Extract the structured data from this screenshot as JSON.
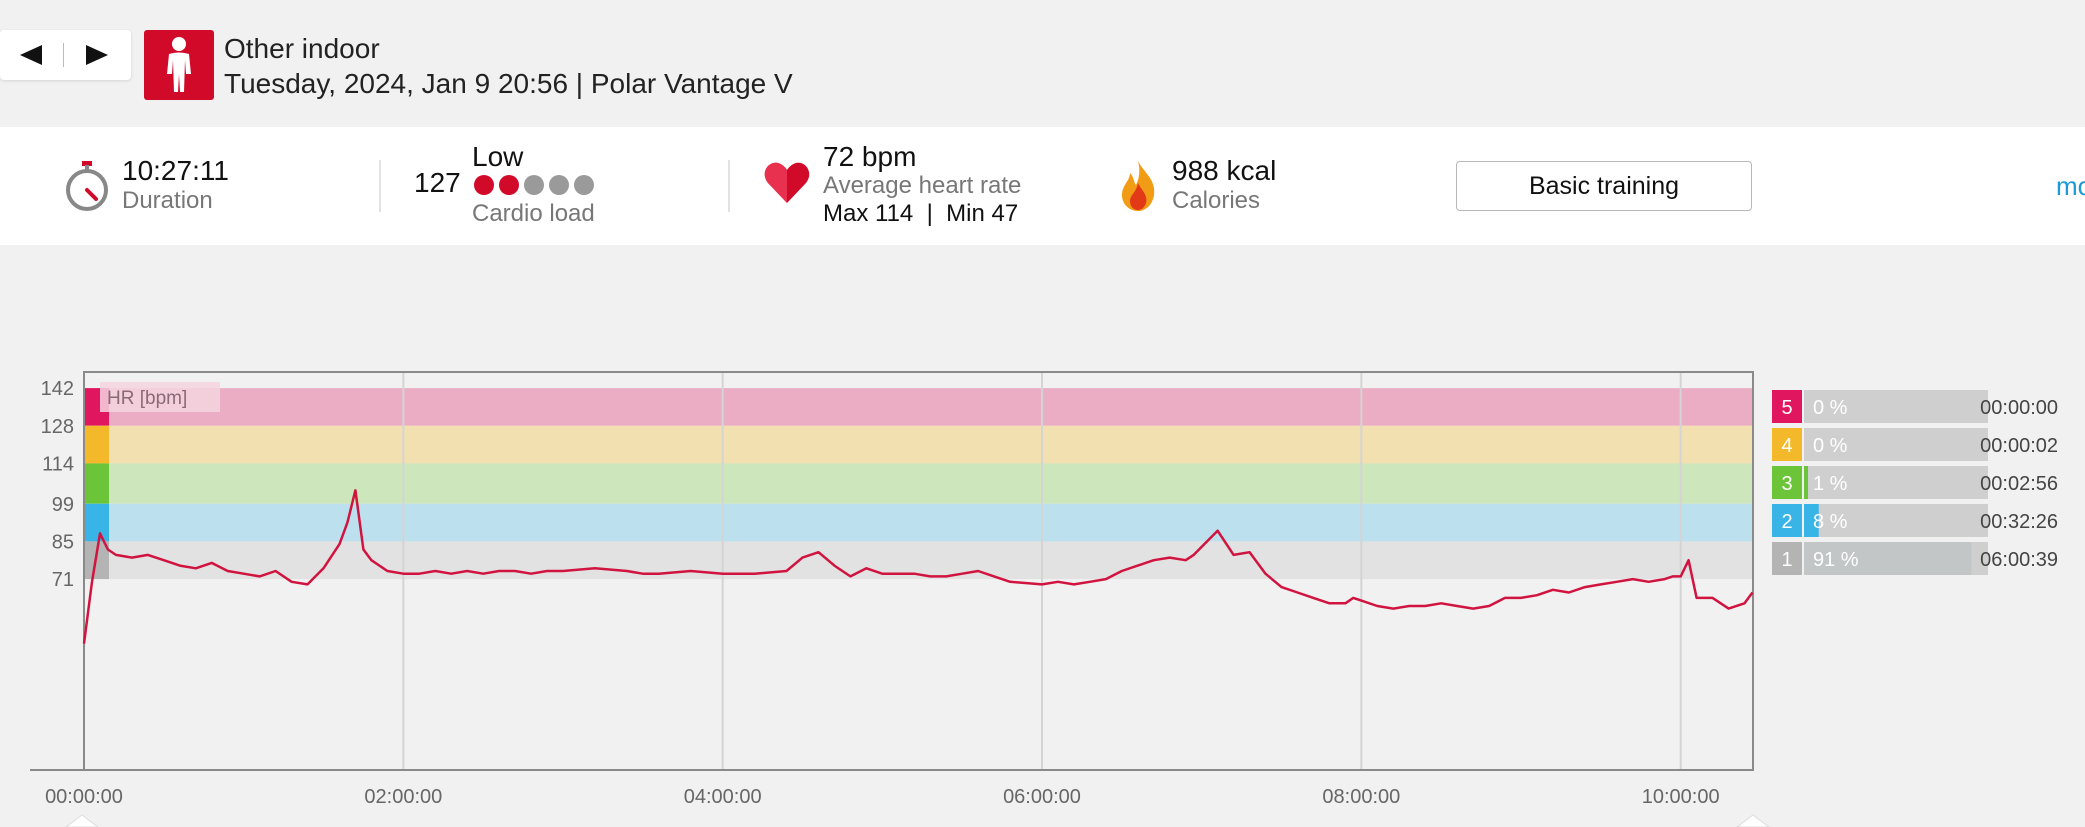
{
  "header": {
    "prev_icon": "triangle-left-icon",
    "next_icon": "triangle-right-icon",
    "sport_icon": "person-standing-icon",
    "sport_name": "Other indoor",
    "datetime_device": "Tuesday, 2024, Jan 9 20:56 | Polar Vantage V"
  },
  "summary": {
    "duration": {
      "icon": "stopwatch-icon",
      "value": "10:27:11",
      "label": "Duration"
    },
    "cardio_load": {
      "value": "127",
      "level": "Low",
      "label": "Cardio load",
      "dots_filled": 2,
      "dots_total": 5,
      "dot_colors": {
        "filled": "#d10a2a",
        "empty": "#9a9a9a"
      }
    },
    "heart_rate": {
      "icon": "heart-icon",
      "value": "72 bpm",
      "label": "Average heart rate",
      "max_min": "Max 114  |  Min 47"
    },
    "calories": {
      "icon": "flame-icon",
      "value": "988 kcal",
      "label": "Calories"
    },
    "button_label": "Basic training",
    "more_link": "mo"
  },
  "chart_data": {
    "type": "line",
    "title": "",
    "series_label": "HR [bpm]",
    "xlabel": "",
    "ylabel": "HR [bpm]",
    "x_unit": "hh:mm:ss",
    "x_range": [
      "00:00:00",
      "10:27:11"
    ],
    "x_ticks": [
      "00:00:00",
      "02:00:00",
      "04:00:00",
      "06:00:00",
      "08:00:00",
      "10:00:00"
    ],
    "y_ticks": [
      142,
      128,
      114,
      99,
      85,
      71
    ],
    "ylim": [
      0,
      148
    ],
    "line_color": "#d1143f",
    "zones": [
      {
        "zone": 5,
        "min": 128,
        "max": 142,
        "band_color": "#ebadc3",
        "swatch": "#e0175f"
      },
      {
        "zone": 4,
        "min": 114,
        "max": 128,
        "band_color": "#f3e0b0",
        "swatch": "#f4b92a"
      },
      {
        "zone": 3,
        "min": 99,
        "max": 114,
        "band_color": "#cde6bb",
        "swatch": "#6cc439"
      },
      {
        "zone": 2,
        "min": 85,
        "max": 99,
        "band_color": "#bde0ef",
        "swatch": "#38b5e6"
      },
      {
        "zone": 1,
        "min": 71,
        "max": 85,
        "band_color": "#e2e2e2",
        "swatch": "#b4b4b4"
      }
    ],
    "series": [
      {
        "name": "HR [bpm]",
        "x_hours": [
          0,
          0.05,
          0.1,
          0.15,
          0.2,
          0.3,
          0.4,
          0.5,
          0.6,
          0.7,
          0.8,
          0.9,
          1.0,
          1.1,
          1.2,
          1.3,
          1.4,
          1.5,
          1.6,
          1.65,
          1.7,
          1.75,
          1.8,
          1.85,
          1.9,
          2.0,
          2.1,
          2.2,
          2.3,
          2.4,
          2.5,
          2.6,
          2.7,
          2.8,
          2.9,
          3.0,
          3.2,
          3.4,
          3.5,
          3.6,
          3.8,
          4.0,
          4.2,
          4.4,
          4.5,
          4.6,
          4.7,
          4.8,
          4.9,
          5.0,
          5.2,
          5.3,
          5.4,
          5.5,
          5.6,
          5.7,
          5.8,
          6.0,
          6.1,
          6.2,
          6.3,
          6.4,
          6.5,
          6.6,
          6.7,
          6.8,
          6.9,
          6.95,
          7.0,
          7.1,
          7.2,
          7.3,
          7.4,
          7.5,
          7.6,
          7.7,
          7.8,
          7.9,
          7.95,
          8.0,
          8.1,
          8.2,
          8.3,
          8.4,
          8.5,
          8.6,
          8.7,
          8.8,
          8.9,
          9.0,
          9.1,
          9.2,
          9.3,
          9.4,
          9.5,
          9.6,
          9.7,
          9.8,
          9.9,
          9.95,
          10.0,
          10.05,
          10.1,
          10.2,
          10.3,
          10.4,
          10.45
        ],
        "y": [
          47,
          70,
          88,
          82,
          80,
          79,
          80,
          78,
          76,
          75,
          77,
          74,
          73,
          72,
          74,
          70,
          69,
          75,
          84,
          92,
          104,
          82,
          78,
          76,
          74,
          73,
          73,
          74,
          73,
          74,
          73,
          74,
          74,
          73,
          74,
          74,
          75,
          74,
          73,
          73,
          74,
          73,
          73,
          74,
          79,
          81,
          76,
          72,
          75,
          73,
          73,
          72,
          72,
          73,
          74,
          72,
          70,
          69,
          70,
          69,
          70,
          71,
          74,
          76,
          78,
          79,
          78,
          80,
          83,
          89,
          80,
          81,
          73,
          68,
          66,
          64,
          62,
          62,
          64,
          63,
          61,
          60,
          61,
          61,
          62,
          61,
          60,
          61,
          64,
          64,
          65,
          67,
          66,
          68,
          69,
          70,
          71,
          70,
          71,
          72,
          72,
          78,
          64,
          64,
          60,
          62,
          66
        ]
      }
    ]
  },
  "zone_table": [
    {
      "zone": "5",
      "percent": "0 %",
      "time": "00:00:00",
      "fraction": 0.0
    },
    {
      "zone": "4",
      "percent": "0 %",
      "time": "00:00:02",
      "fraction": 0.0
    },
    {
      "zone": "3",
      "percent": "1 %",
      "time": "00:02:56",
      "fraction": 0.01
    },
    {
      "zone": "2",
      "percent": "8 %",
      "time": "00:32:26",
      "fraction": 0.08
    },
    {
      "zone": "1",
      "percent": "91 %",
      "time": "06:00:39",
      "fraction": 0.91
    }
  ]
}
